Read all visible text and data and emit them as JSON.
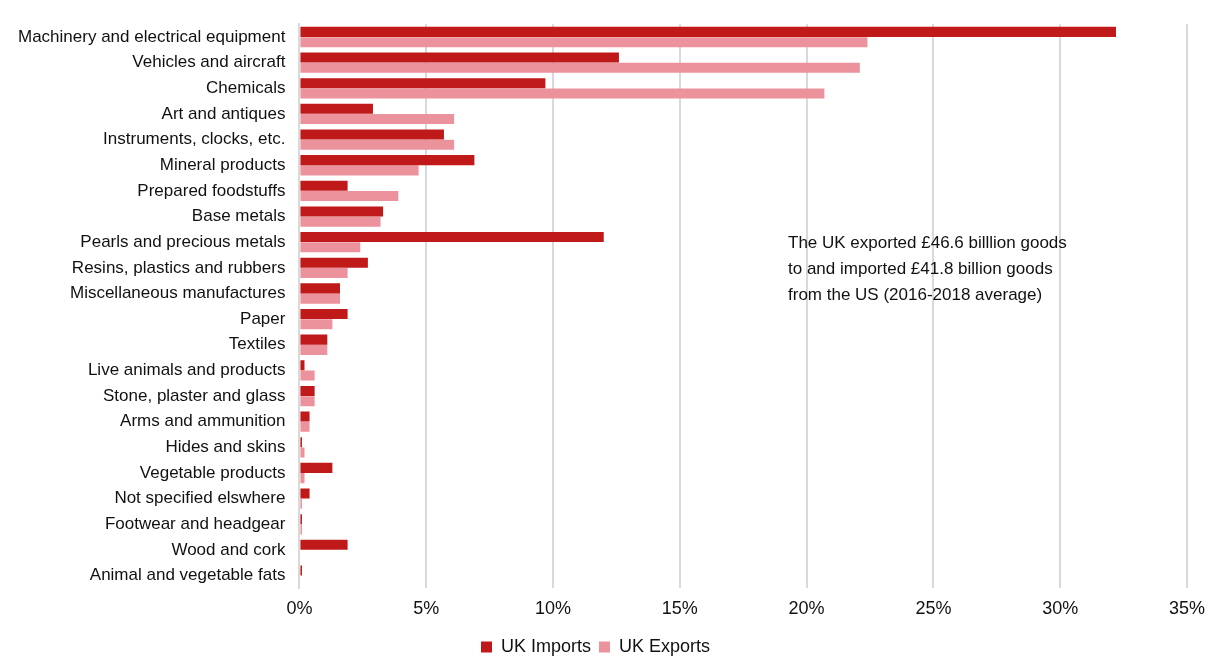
{
  "chart_data": {
    "type": "bar",
    "orientation": "horizontal",
    "categories": [
      "Machinery and electrical equipment",
      "Vehicles and aircraft",
      "Chemicals",
      "Art and antiques",
      "Instruments, clocks, etc.",
      "Mineral products",
      "Prepared foodstuffs",
      "Base metals",
      "Pearls and precious metals",
      "Resins, plastics and rubbers",
      "Miscellaneous manufactures",
      "Paper",
      "Textiles",
      "Live animals and products",
      "Stone, plaster and glass",
      "Arms and ammunition",
      "Hides and skins",
      "Vegetable products",
      "Not specified elswhere",
      "Footwear and headgear",
      "Wood and cork",
      "Animal and vegetable fats"
    ],
    "series": [
      {
        "name": "UK Imports",
        "color": "#c0191a",
        "values": [
          32.2,
          12.6,
          9.7,
          2.9,
          5.7,
          6.9,
          1.9,
          3.3,
          12.0,
          2.7,
          1.6,
          1.9,
          1.1,
          0.2,
          0.6,
          0.4,
          0.1,
          1.3,
          0.4,
          0.1,
          1.9,
          0.1
        ]
      },
      {
        "name": "UK Exports",
        "color": "#ec929c",
        "values": [
          22.4,
          22.1,
          20.7,
          6.1,
          6.1,
          4.7,
          3.9,
          3.2,
          2.4,
          1.9,
          1.6,
          1.3,
          1.1,
          0.6,
          0.6,
          0.4,
          0.2,
          0.2,
          0.1,
          0.1,
          null,
          null
        ]
      }
    ],
    "xlim": [
      0,
      35
    ],
    "xticks": [
      {
        "value": 0,
        "label": "0%"
      },
      {
        "value": 5,
        "label": "5%"
      },
      {
        "value": 10,
        "label": "10%"
      },
      {
        "value": 15,
        "label": "15%"
      },
      {
        "value": 20,
        "label": "20%"
      },
      {
        "value": 25,
        "label": "25%"
      },
      {
        "value": 30,
        "label": "30%"
      },
      {
        "value": 35,
        "label": "35%"
      }
    ],
    "grid": "x",
    "legend": "bottom",
    "annotations": [
      "The UK exported £46.6 billlion goods\nto and imported £41.8 billion goods\nfrom the US (2016-2018 average)"
    ]
  }
}
